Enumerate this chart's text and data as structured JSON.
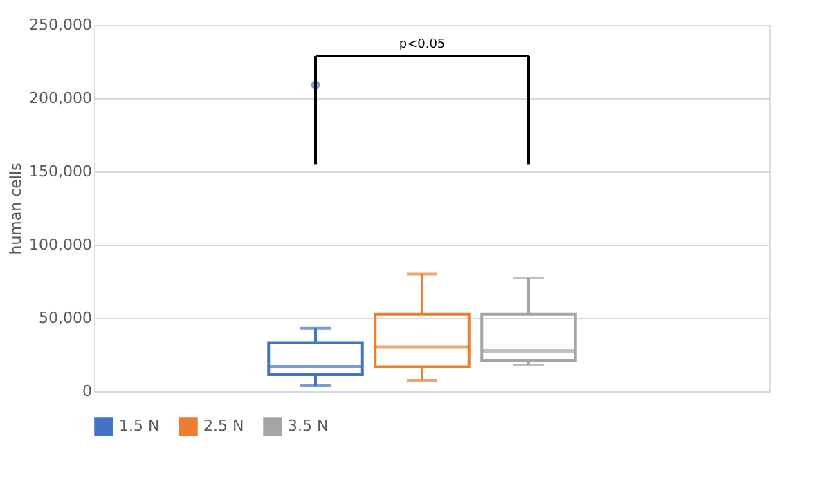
{
  "chart_data": {
    "type": "box",
    "categories": [
      null
    ],
    "ylabel": "human cells",
    "ylim": [
      0,
      250000
    ],
    "yticks": [
      {
        "value": 0,
        "label": "0"
      },
      {
        "value": 50000,
        "label": "50,000"
      },
      {
        "value": 100000,
        "label": "100,000"
      },
      {
        "value": 150000,
        "label": "150,000"
      },
      {
        "value": 200000,
        "label": "200,000"
      },
      {
        "value": 250000,
        "label": "250,000"
      }
    ],
    "grid": "y",
    "legend": "bottom",
    "annotations": [
      "p<0.05"
    ],
    "series": [
      {
        "name": "1.5 N",
        "color": "#4472c4",
        "boxes": [
          {
            "low": 3800,
            "q1": 11300,
            "median": 16700,
            "q3": 33300,
            "high": 43000,
            "outliers": [
              209000
            ]
          }
        ]
      },
      {
        "name": "2.5 N",
        "color": "#ed7d31",
        "boxes": [
          {
            "low": 7500,
            "q1": 16700,
            "median": 30200,
            "q3": 52500,
            "high": 79900
          }
        ]
      },
      {
        "name": "3.5 N",
        "color": "#a5a5a5",
        "boxes": [
          {
            "low": 17900,
            "q1": 20800,
            "median": 27600,
            "q3": 52500,
            "high": 77400
          }
        ]
      }
    ]
  }
}
